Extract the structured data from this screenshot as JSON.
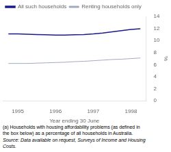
{
  "chart_data": {
    "type": "line",
    "xlabel": "Year ending 30 June",
    "ylabel": "%",
    "x": [
      1994.75,
      1995.0,
      1995.25,
      1995.5,
      1995.75,
      1996.0,
      1996.25,
      1996.5,
      1996.75,
      1997.0,
      1997.25,
      1997.5,
      1997.75,
      1998.0,
      1998.25
    ],
    "series": [
      {
        "name": "All such households",
        "color": "#1a1a8c",
        "values": [
          11.1,
          11.1,
          11.05,
          11.0,
          10.95,
          10.9,
          10.9,
          10.95,
          11.0,
          11.1,
          11.25,
          11.45,
          11.65,
          11.85,
          11.95
        ]
      },
      {
        "name": "Renting households only",
        "color": "#a0aabf",
        "values": [
          6.2,
          6.2,
          6.2,
          6.25,
          6.3,
          6.35,
          6.4,
          6.5,
          6.55,
          6.65,
          6.75,
          6.85,
          6.9,
          7.0,
          7.1
        ]
      }
    ],
    "xlim": [
      1994.6,
      1998.4
    ],
    "xticks": [
      1995,
      1996,
      1997,
      1998
    ],
    "ylim": [
      0,
      14
    ],
    "yticks": [
      0,
      2,
      4,
      6,
      8,
      10,
      12,
      14
    ],
    "grid": false,
    "legend": "upper left",
    "annotations": [
      "(a) Households with housing affordability problems (as defined in\nthe box below) as a percentage of all households in Australia.",
      "Source: Data available on request, Surveys of Income and Housing\nCosts."
    ]
  }
}
